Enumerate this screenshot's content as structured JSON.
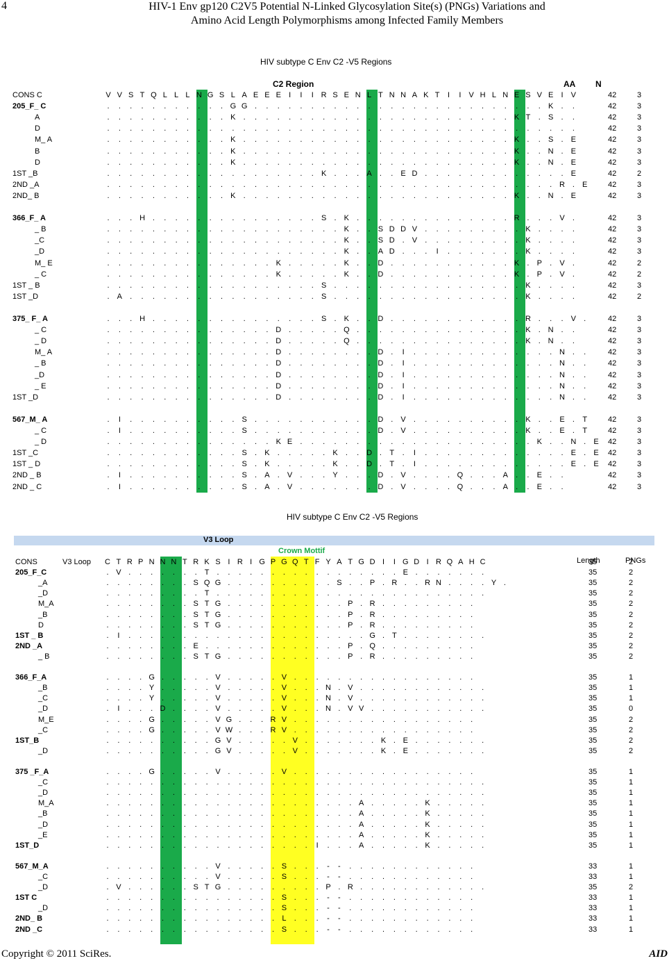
{
  "page": {
    "number": "4",
    "title_line1": "HIV-1 Env gp120 C2V5 Potential N-Linked Glycosylation Site(s) (PNGs) Variations and",
    "title_line2": "Amino Acid Length Polymorphisms among Infected Family Members",
    "footer_left": "Copyright © 2011 SciRes.",
    "footer_right": "AID"
  },
  "fig1": {
    "title": "HIV subtype C Env C2 -V5 Regions",
    "region_label": "C2 Region",
    "aa_header": "AA",
    "n_header": "N",
    "colors": {
      "green": "#1aaa4a"
    },
    "rows": [
      {
        "label": "CONS C",
        "seq": "VVSTQLLLNGSLAEEEIIIRSENLTNNAKTIIVHLNESVEIV",
        "aa": "42",
        "n": "3"
      },
      {
        "label": "205_F_ C",
        "seq": "...........GG..........................K..",
        "aa": "42",
        "n": "3"
      },
      {
        "label": "A",
        "seq": "...........K........................KT.S..",
        "aa": "42",
        "n": "3"
      },
      {
        "label": "D",
        "seq": "..........................................",
        "aa": "42",
        "n": "3"
      },
      {
        "label": "M_ A",
        "seq": "...........K........................K..S.E",
        "aa": "42",
        "n": "3"
      },
      {
        "label": "B",
        "seq": "...........K........................K..N.E",
        "aa": "42",
        "n": "3"
      },
      {
        "label": "D",
        "seq": "...........K........................K..N.E",
        "aa": "42",
        "n": "3"
      },
      {
        "label": "1ST _B",
        "seq": "...................K...A..ED.............E",
        "aa": "42",
        "n": "2"
      },
      {
        "label": "2ND _A",
        "seq": "........................................R.E",
        "aa": "42",
        "n": "3"
      },
      {
        "label": "2ND_ B",
        "seq": "...........K........................K..N.E",
        "aa": "42",
        "n": "3"
      },
      {
        "label": "",
        "seq": "",
        "aa": "",
        "n": ""
      },
      {
        "label": "366_F_ A",
        "seq": "...H...............S.K..............R...V.",
        "aa": "42",
        "n": "3"
      },
      {
        "label": "_ B",
        "seq": ".....................K..SDDV.........K....",
        "aa": "42",
        "n": "3"
      },
      {
        "label": "_C",
        "seq": ".....................K..SD.V.........K....",
        "aa": "42",
        "n": "3"
      },
      {
        "label": "_D",
        "seq": ".....................K..AD...I.......K....",
        "aa": "42",
        "n": "3"
      },
      {
        "label": "M_ E",
        "seq": "...............K.....K..D...........K.P.V.",
        "aa": "42",
        "n": "2"
      },
      {
        "label": "_ C",
        "seq": "...............K.....K..D...........K.P.V.",
        "aa": "42",
        "n": "2"
      },
      {
        "label": "1ST _ B",
        "seq": "...................S.................K....",
        "aa": "42",
        "n": "3"
      },
      {
        "label": "1ST _D",
        "seq": ".A.................S.................K....",
        "aa": "42",
        "n": "2"
      },
      {
        "label": "",
        "seq": "",
        "aa": "",
        "n": ""
      },
      {
        "label": "375_ F_ A",
        "seq": "...H...............S.K..D............R...V.",
        "aa": "42",
        "n": "3"
      },
      {
        "label": "_ C",
        "seq": "...............D.....Q...............K.N..",
        "aa": "42",
        "n": "3"
      },
      {
        "label": "_ D",
        "seq": "...............D.....Q...............K.N..",
        "aa": "42",
        "n": "3"
      },
      {
        "label": "M_ A",
        "seq": "...............D........D.I.............N..",
        "aa": "42",
        "n": "3"
      },
      {
        "label": "_ B",
        "seq": "...............D........D.I.............N..",
        "aa": "42",
        "n": "3"
      },
      {
        "label": "_D",
        "seq": "...............D........D.I.............N..",
        "aa": "42",
        "n": "3"
      },
      {
        "label": "_ E",
        "seq": "...............D........D.I.............N..",
        "aa": "42",
        "n": "3"
      },
      {
        "label": "1ST _D",
        "seq": "...............D........D.I.............N..",
        "aa": "42",
        "n": "3"
      },
      {
        "label": "",
        "seq": "",
        "aa": "",
        "n": ""
      },
      {
        "label": "567_M_ A",
        "seq": ".I..........S...........D.V..........K..E.T",
        "aa": "42",
        "n": "3"
      },
      {
        "label": "_ C",
        "seq": ".I..........S...........D.V..........K..E.T",
        "aa": "42",
        "n": "3"
      },
      {
        "label": "_ D",
        "seq": "...............KE.....................K..N.E",
        "aa": "42",
        "n": "3"
      },
      {
        "label": "1ST _C",
        "seq": "............S.K.....K..D.T.I.............E.E",
        "aa": "42",
        "n": "3"
      },
      {
        "label": "1ST _ D",
        "seq": "............S.K.....K..D.T.I.............E.E",
        "aa": "42",
        "n": "3"
      },
      {
        "label": "2ND _ B",
        "seq": ".I..........S.A.V...Y...D.V....Q...A..E..",
        "aa": "42",
        "n": "3"
      },
      {
        "label": "2ND _ C",
        "seq": ".I..........S.A.V.......D.V....Q...A..E..",
        "aa": "42",
        "n": "3"
      }
    ]
  },
  "fig2": {
    "title": "HIV subtype C Env C2 -V5 Regions",
    "bar_label": "V3 Loop",
    "crown_label": "Crown Mottif",
    "length_header": "Length",
    "pngs_header": "PNGs",
    "colors": {
      "green": "#1aaa4a",
      "yellow": "#ffff22",
      "bar": "#c5d8ef",
      "crown": "#1aaa4a"
    },
    "rows": [
      {
        "label": "CONS",
        "extra": "V3 Loop",
        "seq": "CTRPNNNTRKSIRIGPGQTFYATGDIIGDIRQAHC",
        "len": "35",
        "png": "2"
      },
      {
        "label": "205_F_C",
        "extra": "",
        "seq": ".V.......T.................E.......",
        "len": "35",
        "png": "2"
      },
      {
        "label": "_A",
        "extra": "",
        "seq": "........SQG..........S..P.R..RN....Y.",
        "len": "35",
        "png": "2"
      },
      {
        "label": "_D",
        "extra": "",
        "seq": ".........T.........................",
        "len": "35",
        "png": "2"
      },
      {
        "label": "M_A",
        "extra": "",
        "seq": "........STG...........P.R.........",
        "len": "35",
        "png": "2"
      },
      {
        "label": "_B",
        "extra": "",
        "seq": "........STG...........P.R.........",
        "len": "35",
        "png": "2"
      },
      {
        "label": "D",
        "extra": "",
        "seq": "........STG...........P.R.........",
        "len": "35",
        "png": "2"
      },
      {
        "label": "1ST _ B",
        "extra": "",
        "seq": ".I......................G.T........",
        "len": "35",
        "png": "2"
      },
      {
        "label": "2ND _A",
        "extra": "",
        "seq": "........E.............P.Q.........",
        "len": "35",
        "png": "2"
      },
      {
        "label": "_ B",
        "extra": "",
        "seq": "........STG...........P.R.........",
        "len": "35",
        "png": "2"
      },
      {
        "label": "",
        "extra": "",
        "seq": "",
        "len": "",
        "png": ""
      },
      {
        "label": "366_F_A",
        "extra": "",
        "seq": "....G.....V.....V.................",
        "len": "35",
        "png": "1"
      },
      {
        "label": "_B",
        "extra": "",
        "seq": "....Y.....V.....V...N.V............",
        "len": "35",
        "png": "1"
      },
      {
        "label": "_C",
        "extra": "",
        "seq": "....Y.....V.....V...N.V............",
        "len": "35",
        "png": "1"
      },
      {
        "label": "_D",
        "extra": "",
        "seq": ".I...D....V.....V...N.VV...........",
        "len": "35",
        "png": "0"
      },
      {
        "label": "M_E",
        "extra": "",
        "seq": "....G.....VG...RV.................",
        "len": "35",
        "png": "2"
      },
      {
        "label": "_C",
        "extra": "",
        "seq": "....G.....VW...RV.................",
        "len": "35",
        "png": "2"
      },
      {
        "label": "1ST_B",
        "extra": "",
        "seq": "..........GV.....V.......K.E.......",
        "len": "35",
        "png": "2"
      },
      {
        "label": "_D",
        "extra": "",
        "seq": "..........GV.....V.......K.E.......",
        "len": "35",
        "png": "2"
      },
      {
        "label": "",
        "extra": "",
        "seq": "",
        "len": "",
        "png": ""
      },
      {
        "label": "375 _F_A",
        "extra": "",
        "seq": "....G.....V.....V.................",
        "len": "35",
        "png": "1"
      },
      {
        "label": "_C",
        "extra": "",
        "seq": "...................................",
        "len": "35",
        "png": "1"
      },
      {
        "label": "_D",
        "extra": "",
        "seq": "...................................",
        "len": "35",
        "png": "1"
      },
      {
        "label": "M_A",
        "extra": "",
        "seq": ".......................A.....K.....",
        "len": "35",
        "png": "1"
      },
      {
        "label": "_B",
        "extra": "",
        "seq": ".......................A.....K.....",
        "len": "35",
        "png": "1"
      },
      {
        "label": "_D",
        "extra": "",
        "seq": ".......................A.....K.....",
        "len": "35",
        "png": "1"
      },
      {
        "label": "_E",
        "extra": "",
        "seq": ".......................A.....K.....",
        "len": "35",
        "png": "1"
      },
      {
        "label": "1ST_D",
        "extra": "",
        "seq": "...................I...A.....K.....",
        "len": "35",
        "png": "1"
      },
      {
        "label": "",
        "extra": "",
        "seq": "",
        "len": "",
        "png": ""
      },
      {
        "label": "567_M_A",
        "extra": "",
        "seq": "..........V.....S...--............",
        "len": "33",
        "png": "1"
      },
      {
        "label": "_C",
        "extra": "",
        "seq": "..........V.....S...--............",
        "len": "33",
        "png": "1"
      },
      {
        "label": "_D",
        "extra": "",
        "seq": ".V......STG.........P.R............",
        "len": "35",
        "png": "2"
      },
      {
        "label": "1ST C",
        "extra": "",
        "seq": "................S...--............",
        "len": "33",
        "png": "1"
      },
      {
        "label": "_D",
        "extra": "",
        "seq": "................S...--............",
        "len": "33",
        "png": "1"
      },
      {
        "label": "2ND_ B",
        "extra": "",
        "seq": "................L...--............",
        "len": "33",
        "png": "1"
      },
      {
        "label": "2ND _C",
        "extra": "",
        "seq": "................S...--............",
        "len": "33",
        "png": "1"
      }
    ]
  }
}
